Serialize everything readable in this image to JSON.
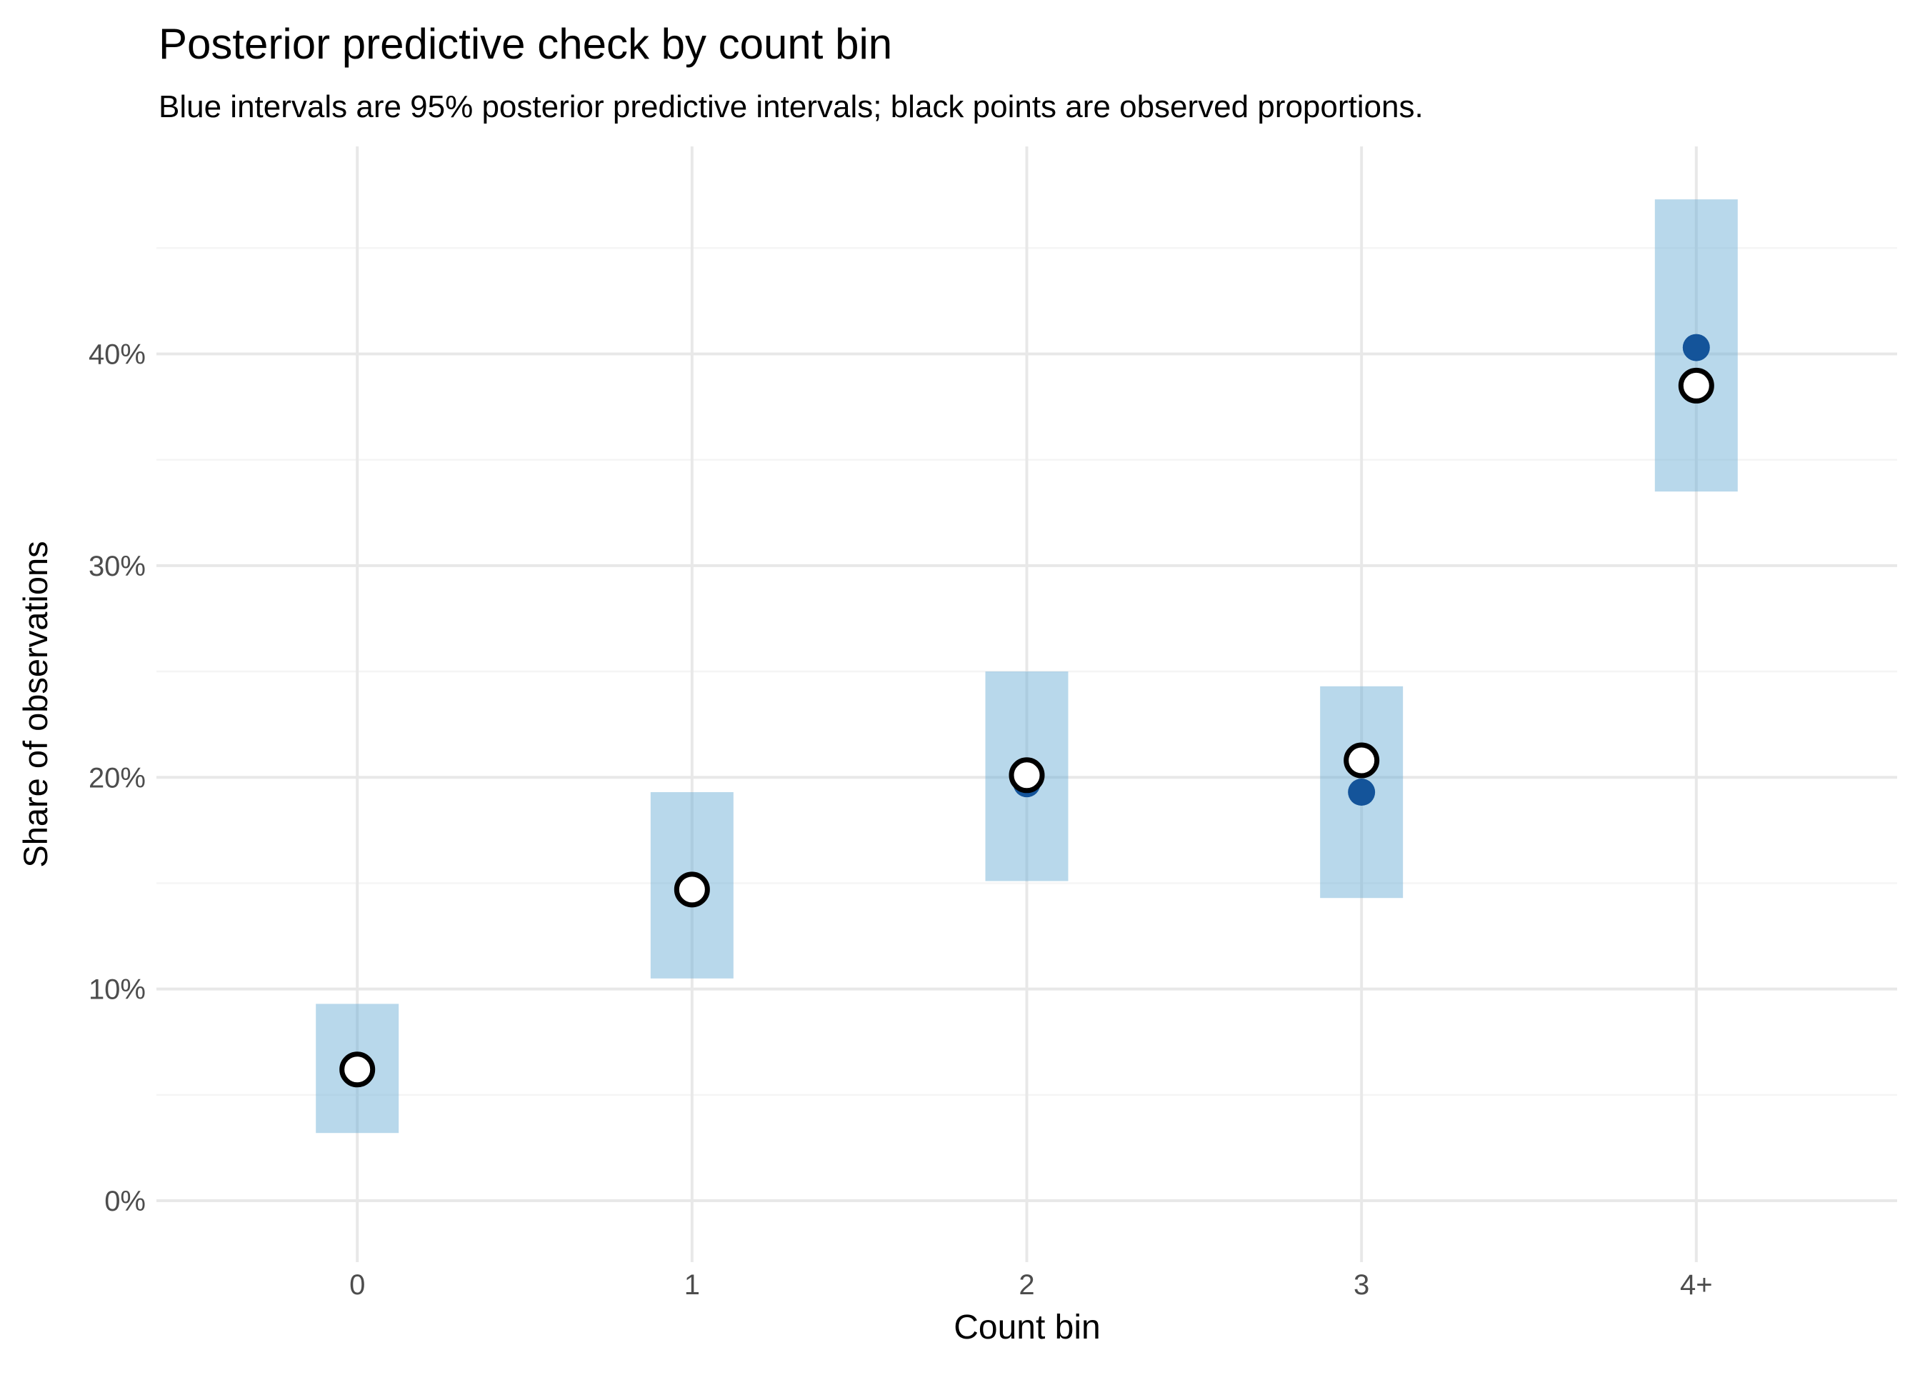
{
  "chart_data": {
    "type": "scatter",
    "title": "Posterior predictive check by count bin",
    "subtitle": "Blue intervals are 95% posterior predictive intervals; black points are observed proportions.",
    "xlabel": "Count bin",
    "ylabel": "Share of observations",
    "categories": [
      "0",
      "1",
      "2",
      "3",
      "4+"
    ],
    "y_ticks": [
      "0%",
      "10%",
      "20%",
      "30%",
      "40%"
    ],
    "y_tick_values": [
      0,
      10,
      20,
      30,
      40
    ],
    "y_minor_values": [
      5,
      15,
      25,
      35,
      45
    ],
    "ylim": [
      -2.9,
      49.8
    ],
    "grid": "on",
    "legend": "none",
    "series": [
      {
        "name": "95% posterior predictive interval",
        "kind": "interval",
        "low_pct": [
          3.2,
          10.5,
          15.1,
          14.3,
          33.5
        ],
        "high_pct": [
          9.3,
          19.3,
          25.0,
          24.3,
          47.3
        ],
        "fill": "#6BAED6",
        "fill_opacity": 0.48
      },
      {
        "name": "posterior predictive point",
        "kind": "point-solid",
        "values_pct": [
          6.2,
          14.7,
          19.7,
          19.3,
          40.3
        ],
        "color": "#14549A"
      },
      {
        "name": "observed proportion",
        "kind": "point-open",
        "values_pct": [
          6.2,
          14.7,
          20.1,
          20.8,
          38.5
        ],
        "stroke": "#000000",
        "fill": "#FFFFFF"
      }
    ],
    "theme": {
      "background": "#FFFFFF",
      "grid_major": "#E8E8E8",
      "grid_minor": "#F5F5F5",
      "axis_text": "#4D4D4D",
      "title_text": "#000000"
    }
  }
}
